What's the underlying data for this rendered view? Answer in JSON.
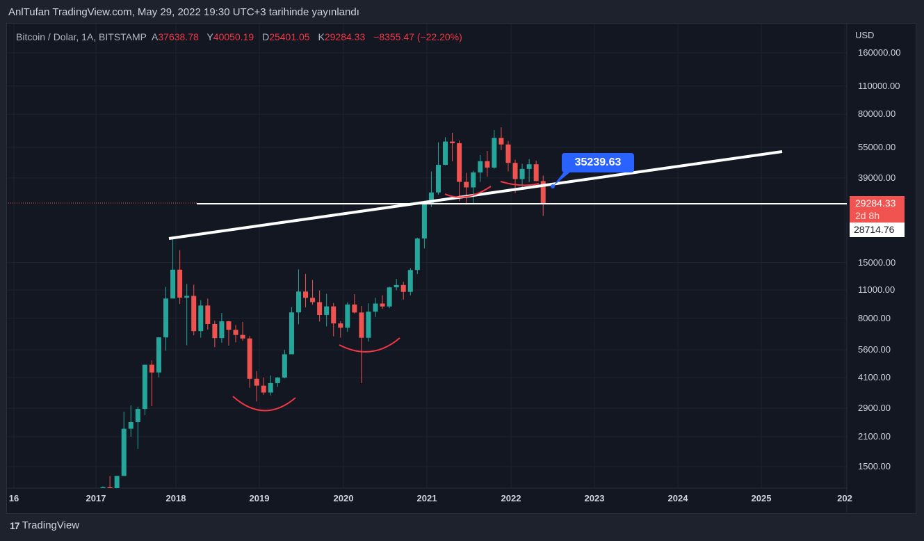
{
  "published": "AnlTufan TradingView.com, May 29, 2022 19:30 UTC+3 tarihinde yayınlandı",
  "legend": {
    "symbol": "Bitcoin / Dolar, 1A, BITSTAMP",
    "open_label": "A",
    "open": "37638.78",
    "high_label": "Y",
    "high": "40050.19",
    "low_label": "D",
    "low": "25401.05",
    "close_label": "K",
    "close": "29284.33",
    "change": "−8355.47 (−22.20%)"
  },
  "currency": "USD",
  "price_labels": [
    "160000.00",
    "110000.00",
    "80000.00",
    "55000.00",
    "39000.00",
    "15000.00",
    "11000.00",
    "8000.00",
    "5600.00",
    "4100.00",
    "2900.00",
    "2100.00",
    "1500.00"
  ],
  "current_price": {
    "value": "29284.33",
    "countdown": "2d 8h"
  },
  "crosshair_price": "28714.76",
  "annotation": "35239.63",
  "time_labels": [
    "16",
    "2017",
    "2018",
    "2019",
    "2020",
    "2021",
    "2022",
    "2023",
    "2024",
    "2025",
    "202"
  ],
  "brand": "TradingView",
  "colors": {
    "up": "#26a69a",
    "down": "#ef5350",
    "annotation": "#2962ff"
  },
  "chart_data": {
    "type": "candlestick",
    "title": "Bitcoin / Dolar, 1A, BITSTAMP",
    "yscale": "log",
    "ylim": [
      1000,
      200000
    ],
    "start": "2017-01",
    "interval": "1M",
    "ohlc": [
      [
        963,
        1150,
        750,
        965
      ],
      [
        965,
        1200,
        920,
        1190
      ],
      [
        1190,
        1350,
        890,
        1080
      ],
      [
        1080,
        1350,
        1060,
        1350
      ],
      [
        1350,
        2790,
        1350,
        2300
      ],
      [
        2300,
        3000,
        2100,
        2480
      ],
      [
        2480,
        2950,
        1830,
        2875
      ],
      [
        2875,
        4480,
        2680,
        4735
      ],
      [
        4735,
        4980,
        2970,
        4340
      ],
      [
        4340,
        6470,
        4110,
        6450
      ],
      [
        6450,
        11400,
        5550,
        10000
      ],
      [
        10000,
        19666,
        10000,
        13850
      ],
      [
        13850,
        17250,
        9400,
        10100
      ],
      [
        10100,
        11800,
        5900,
        10300
      ],
      [
        10300,
        11700,
        6600,
        6920
      ],
      [
        6920,
        9800,
        6430,
        9240
      ],
      [
        9240,
        9990,
        7030,
        7500
      ],
      [
        7500,
        7780,
        5780,
        6400
      ],
      [
        6400,
        8500,
        6070,
        7730
      ],
      [
        7730,
        7760,
        5880,
        7020
      ],
      [
        7020,
        7410,
        6100,
        6630
      ],
      [
        6630,
        7680,
        6200,
        6370
      ],
      [
        6370,
        6550,
        3650,
        4040
      ],
      [
        4040,
        4410,
        3130,
        3740
      ],
      [
        3740,
        4100,
        3370,
        3460
      ],
      [
        3460,
        4200,
        3350,
        3850
      ],
      [
        3850,
        4120,
        3690,
        4100
      ],
      [
        4100,
        5600,
        4060,
        5330
      ],
      [
        5330,
        9080,
        5330,
        8550
      ],
      [
        8550,
        13880,
        7480,
        10820
      ],
      [
        10820,
        13200,
        9060,
        10080
      ],
      [
        10080,
        12330,
        9330,
        9600
      ],
      [
        9600,
        10950,
        7710,
        8300
      ],
      [
        8300,
        10540,
        7300,
        9150
      ],
      [
        9150,
        9510,
        6530,
        7550
      ],
      [
        7550,
        7750,
        6430,
        7190
      ],
      [
        7190,
        9580,
        6860,
        9350
      ],
      [
        9350,
        10500,
        8450,
        8540
      ],
      [
        8540,
        9190,
        3850,
        6420
      ],
      [
        6420,
        9470,
        6150,
        8620
      ],
      [
        8620,
        10070,
        8120,
        9450
      ],
      [
        9450,
        10380,
        8900,
        9140
      ],
      [
        9140,
        11440,
        8970,
        11340
      ],
      [
        11340,
        12470,
        10970,
        11650
      ],
      [
        11650,
        12070,
        9880,
        10780
      ],
      [
        10780,
        14100,
        10370,
        13800
      ],
      [
        13800,
        19860,
        13200,
        19700
      ],
      [
        19700,
        29300,
        17600,
        28990
      ],
      [
        28990,
        41950,
        28130,
        33100
      ],
      [
        33100,
        58350,
        32300,
        45200
      ],
      [
        45200,
        61780,
        44950,
        58800
      ],
      [
        58800,
        64900,
        47000,
        57700
      ],
      [
        57700,
        59500,
        30000,
        37300
      ],
      [
        37300,
        41300,
        28800,
        35040
      ],
      [
        35040,
        42300,
        29300,
        41500
      ],
      [
        41500,
        50500,
        37300,
        47100
      ],
      [
        47100,
        52900,
        39600,
        43800
      ],
      [
        43800,
        67000,
        43300,
        61300
      ],
      [
        61300,
        69000,
        53300,
        56900
      ],
      [
        56900,
        59100,
        42000,
        46200
      ],
      [
        46200,
        47900,
        32900,
        38500
      ],
      [
        38500,
        45800,
        34300,
        43200
      ],
      [
        43200,
        48200,
        37200,
        45500
      ],
      [
        45500,
        47400,
        37600,
        37640
      ],
      [
        37638.78,
        40050.19,
        25401.05,
        29284.33
      ]
    ]
  }
}
